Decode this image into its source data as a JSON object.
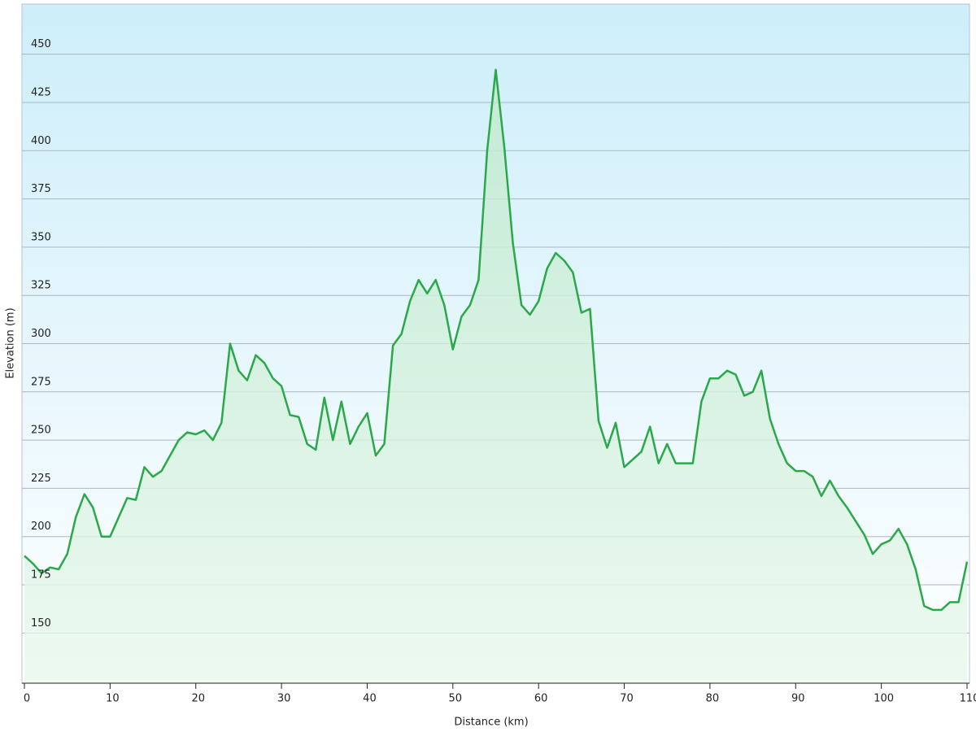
{
  "chart_data": {
    "type": "line",
    "x_label": "Distance  (km)",
    "y_label": "Elevation (m)",
    "x": [
      0,
      1,
      2,
      3,
      4,
      5,
      6,
      7,
      8,
      9,
      10,
      11,
      12,
      13,
      14,
      15,
      16,
      17,
      18,
      19,
      20,
      21,
      22,
      23,
      24,
      25,
      26,
      27,
      28,
      29,
      30,
      31,
      32,
      33,
      34,
      35,
      36,
      37,
      38,
      39,
      40,
      41,
      42,
      43,
      44,
      45,
      46,
      47,
      48,
      49,
      50,
      51,
      52,
      53,
      54,
      55,
      56,
      57,
      58,
      59,
      60,
      61,
      62,
      63,
      64,
      65,
      66,
      67,
      68,
      69,
      70,
      71,
      72,
      73,
      74,
      75,
      76,
      77,
      78,
      79,
      80,
      81,
      82,
      83,
      84,
      85,
      86,
      87,
      88,
      89,
      90,
      91,
      92,
      93,
      94,
      95,
      96,
      97,
      98,
      99,
      100,
      101,
      102,
      103,
      104,
      105,
      106,
      107,
      108,
      109,
      110
    ],
    "series": [
      {
        "name": "Elevation",
        "color": "#2aa84a",
        "values": [
          190,
          186,
          181,
          184,
          183,
          191,
          210,
          222,
          215,
          200,
          200,
          210,
          220,
          219,
          236,
          231,
          234,
          242,
          250,
          254,
          253,
          255,
          250,
          259,
          300,
          286,
          281,
          294,
          290,
          282,
          278,
          263,
          262,
          248,
          245,
          272,
          250,
          270,
          248,
          257,
          264,
          242,
          248,
          299,
          305,
          322,
          333,
          326,
          333,
          320,
          297,
          314,
          320,
          333,
          400,
          442,
          402,
          352,
          320,
          315,
          322,
          339,
          347,
          343,
          337,
          316,
          318,
          260,
          246,
          259,
          236,
          240,
          244,
          257,
          238,
          248,
          238,
          238,
          238,
          270,
          282,
          282,
          286,
          284,
          273,
          275,
          286,
          261,
          248,
          238,
          234,
          234,
          231,
          221,
          229,
          221,
          215,
          208,
          201,
          191,
          196,
          198,
          204,
          196,
          183,
          164,
          162,
          162,
          166,
          166,
          187
        ]
      }
    ],
    "xlim": [
      0,
      110
    ],
    "ylim": [
      124,
      476
    ],
    "xticks": [
      0,
      10,
      20,
      30,
      40,
      50,
      60,
      70,
      80,
      90,
      100,
      110
    ],
    "yticks": [
      150,
      175,
      200,
      225,
      250,
      275,
      300,
      325,
      350,
      375,
      400,
      425,
      450
    ],
    "grid": true
  }
}
